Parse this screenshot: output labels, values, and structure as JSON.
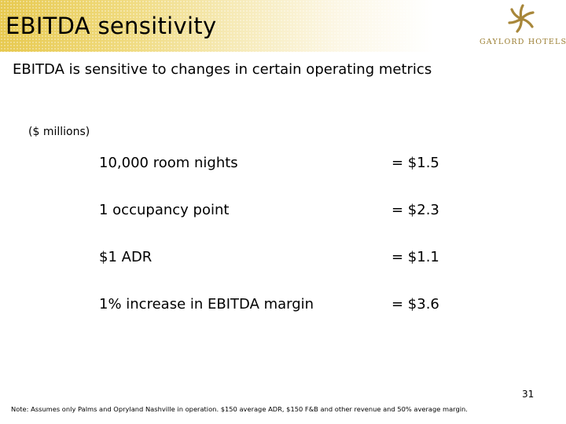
{
  "header": {
    "title": "EBITDA sensitivity",
    "logo_text": "GAYLORD HOTELS",
    "brand_colors": {
      "band": "#e7c94f",
      "logo": "#9a7d30"
    }
  },
  "subtitle": "EBITDA is sensitive to changes in certain operating metrics",
  "units": "($ millions)",
  "metrics": [
    {
      "label": "10,000 room nights",
      "value": "= $1.5"
    },
    {
      "label": "1 occupancy point",
      "value": "= $2.3"
    },
    {
      "label": "$1 ADR",
      "value": "= $1.1"
    },
    {
      "label": "1% increase in EBITDA margin",
      "value": "= $3.6"
    }
  ],
  "page_number": "31",
  "footnote": "Note:  Assumes only Palms and Opryland Nashville in operation. $150 average ADR, $150 F&B and other revenue and 50% average margin."
}
